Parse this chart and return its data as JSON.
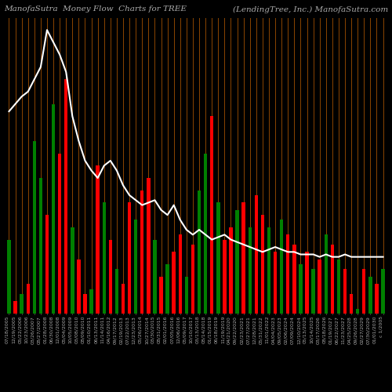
{
  "title_left": "ManofaSutra  Money Flow  Charts for TREE",
  "title_right": "(LendingTree, Inc.) ManofaSutra.com",
  "background_color": "#000000",
  "bar_colors": [
    "green",
    "red",
    "green",
    "red",
    "green",
    "green",
    "red",
    "green",
    "red",
    "red",
    "green",
    "red",
    "red",
    "green",
    "red",
    "green",
    "red",
    "green",
    "red",
    "red",
    "green",
    "red",
    "red",
    "green",
    "red",
    "green",
    "red",
    "red",
    "green",
    "red",
    "green",
    "green",
    "red",
    "green",
    "red",
    "red",
    "green",
    "red",
    "green",
    "red",
    "red",
    "green",
    "red",
    "green",
    "red",
    "red",
    "green",
    "red",
    "green",
    "red",
    "green",
    "red",
    "green",
    "red",
    "red",
    "green",
    "red",
    "green",
    "red",
    "green"
  ],
  "bar_heights": [
    30,
    5,
    8,
    12,
    70,
    55,
    40,
    85,
    65,
    95,
    35,
    22,
    8,
    10,
    60,
    45,
    30,
    18,
    12,
    45,
    38,
    50,
    55,
    30,
    15,
    20,
    25,
    32,
    15,
    28,
    50,
    65,
    80,
    45,
    30,
    35,
    42,
    45,
    35,
    48,
    40,
    35,
    25,
    38,
    32,
    28,
    20,
    25,
    18,
    22,
    32,
    28,
    22,
    18,
    8,
    2,
    18,
    15,
    12,
    18
  ],
  "line_y": [
    82,
    85,
    88,
    90,
    95,
    100,
    115,
    110,
    105,
    98,
    80,
    70,
    62,
    58,
    55,
    60,
    62,
    58,
    52,
    48,
    46,
    44,
    45,
    46,
    42,
    40,
    44,
    38,
    34,
    32,
    34,
    32,
    30,
    31,
    32,
    30,
    29,
    28,
    27,
    26,
    25,
    26,
    27,
    26,
    25,
    25,
    24,
    24,
    24,
    23,
    24,
    23,
    23,
    24,
    23,
    23,
    23,
    23,
    23,
    23
  ],
  "x_labels": [
    "07/18/2005",
    "12/19/2005",
    "05/22/2006",
    "10/23/2006",
    "03/26/2007",
    "08/27/2007",
    "01/28/2008",
    "06/30/2008",
    "12/01/2008",
    "05/04/2009",
    "10/05/2009",
    "03/08/2010",
    "08/09/2010",
    "01/10/2011",
    "06/13/2011",
    "11/14/2011",
    "04/16/2012",
    "09/17/2012",
    "02/19/2013",
    "07/22/2013",
    "12/23/2013",
    "05/26/2014",
    "10/27/2014",
    "03/30/2015",
    "08/31/2015",
    "02/01/2016",
    "07/05/2016",
    "12/06/2016",
    "05/09/2017",
    "10/10/2017",
    "03/13/2018",
    "08/14/2018",
    "01/15/2019",
    "06/18/2019",
    "11/19/2019",
    "04/21/2020",
    "09/22/2020",
    "02/23/2021",
    "07/27/2021",
    "12/28/2021",
    "05/31/2022",
    "11/01/2022",
    "04/04/2023",
    "09/05/2023",
    "02/06/2024",
    "07/09/2024",
    "12/10/2024",
    "05/13/2025",
    "10/14/2025",
    "03/17/2026",
    "08/18/2026",
    "01/19/2027",
    "06/22/2027",
    "11/23/2027",
    "04/25/2028",
    "09/26/2028",
    "02/27/2029",
    "07/30/2029",
    "01/01/2030",
    "c 1/2005"
  ],
  "vline_color": "#8B4500",
  "line_color": "#ffffff",
  "line_width": 1.5,
  "title_fontsize": 7.5,
  "title_color": "#aaaaaa",
  "xlabel_fontsize": 4.5,
  "bar_width": 0.55
}
